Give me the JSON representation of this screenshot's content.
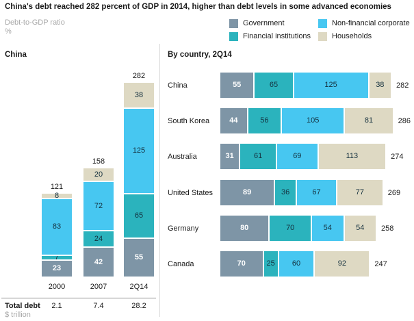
{
  "title": "China's debt reached 282 percent of GDP in 2014, higher than debt levels in some advanced economies",
  "y_axis": {
    "label": "Debt-to-GDP ratio",
    "unit": "%"
  },
  "legend": {
    "items": [
      {
        "name": "Government",
        "color": "#7e95a6"
      },
      {
        "name": "Financial institutions",
        "color": "#2bb3bd"
      },
      {
        "name": "Non-financial corporate",
        "color": "#47c7f1"
      },
      {
        "name": "Households",
        "color": "#ded9c3"
      }
    ]
  },
  "panels": {
    "left_heading": "China",
    "right_heading": "By country, 2Q14"
  },
  "footer": {
    "label": "Total debt",
    "unit": "$ trillion"
  },
  "chart_data": [
    {
      "type": "bar",
      "stacked": true,
      "title": "China",
      "ylabel": "Debt-to-GDP ratio, %",
      "categories": [
        "2000",
        "2007",
        "2Q14"
      ],
      "series": [
        {
          "name": "Government",
          "values": [
            23,
            42,
            55
          ]
        },
        {
          "name": "Financial institutions",
          "values": [
            7,
            24,
            65
          ]
        },
        {
          "name": "Non-financial corporate",
          "values": [
            83,
            72,
            125
          ]
        },
        {
          "name": "Households",
          "values": [
            8,
            20,
            38
          ]
        }
      ],
      "totals": [
        121,
        158,
        282
      ],
      "total_debt_trillion": [
        "2.1",
        "7.4",
        "28.2"
      ],
      "legend_position": "top-right",
      "grid": false
    },
    {
      "type": "bar",
      "orientation": "horizontal",
      "stacked": true,
      "title": "By country, 2Q14",
      "xlabel": "Debt-to-GDP ratio, %",
      "categories": [
        "China",
        "South Korea",
        "Australia",
        "United States",
        "Germany",
        "Canada"
      ],
      "series": [
        {
          "name": "Government",
          "values": [
            55,
            44,
            31,
            89,
            80,
            70
          ]
        },
        {
          "name": "Financial institutions",
          "values": [
            65,
            56,
            61,
            36,
            70,
            25
          ]
        },
        {
          "name": "Non-financial corporate",
          "values": [
            125,
            105,
            69,
            67,
            54,
            60
          ]
        },
        {
          "name": "Households",
          "values": [
            38,
            81,
            113,
            77,
            54,
            92
          ]
        }
      ],
      "totals": [
        282,
        286,
        274,
        269,
        258,
        247
      ],
      "grid": false
    }
  ]
}
